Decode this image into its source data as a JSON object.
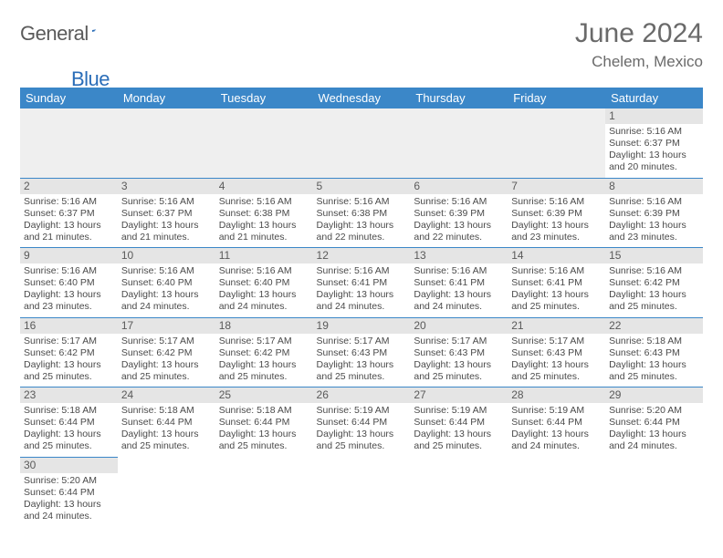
{
  "logo": {
    "dark": "General",
    "blue": "Blue"
  },
  "title": "June 2024",
  "location": "Chelem, Mexico",
  "header_color": "#3b87c8",
  "daynum_bg": "#e5e5e5",
  "divider_color": "#3b87c8",
  "weekdays": [
    "Sunday",
    "Monday",
    "Tuesday",
    "Wednesday",
    "Thursday",
    "Friday",
    "Saturday"
  ],
  "weeks": [
    [
      null,
      null,
      null,
      null,
      null,
      null,
      {
        "n": "1",
        "sr": "Sunrise: 5:16 AM",
        "ss": "Sunset: 6:37 PM",
        "d1": "Daylight: 13 hours",
        "d2": "and 20 minutes."
      }
    ],
    [
      {
        "n": "2",
        "sr": "Sunrise: 5:16 AM",
        "ss": "Sunset: 6:37 PM",
        "d1": "Daylight: 13 hours",
        "d2": "and 21 minutes."
      },
      {
        "n": "3",
        "sr": "Sunrise: 5:16 AM",
        "ss": "Sunset: 6:37 PM",
        "d1": "Daylight: 13 hours",
        "d2": "and 21 minutes."
      },
      {
        "n": "4",
        "sr": "Sunrise: 5:16 AM",
        "ss": "Sunset: 6:38 PM",
        "d1": "Daylight: 13 hours",
        "d2": "and 21 minutes."
      },
      {
        "n": "5",
        "sr": "Sunrise: 5:16 AM",
        "ss": "Sunset: 6:38 PM",
        "d1": "Daylight: 13 hours",
        "d2": "and 22 minutes."
      },
      {
        "n": "6",
        "sr": "Sunrise: 5:16 AM",
        "ss": "Sunset: 6:39 PM",
        "d1": "Daylight: 13 hours",
        "d2": "and 22 minutes."
      },
      {
        "n": "7",
        "sr": "Sunrise: 5:16 AM",
        "ss": "Sunset: 6:39 PM",
        "d1": "Daylight: 13 hours",
        "d2": "and 23 minutes."
      },
      {
        "n": "8",
        "sr": "Sunrise: 5:16 AM",
        "ss": "Sunset: 6:39 PM",
        "d1": "Daylight: 13 hours",
        "d2": "and 23 minutes."
      }
    ],
    [
      {
        "n": "9",
        "sr": "Sunrise: 5:16 AM",
        "ss": "Sunset: 6:40 PM",
        "d1": "Daylight: 13 hours",
        "d2": "and 23 minutes."
      },
      {
        "n": "10",
        "sr": "Sunrise: 5:16 AM",
        "ss": "Sunset: 6:40 PM",
        "d1": "Daylight: 13 hours",
        "d2": "and 24 minutes."
      },
      {
        "n": "11",
        "sr": "Sunrise: 5:16 AM",
        "ss": "Sunset: 6:40 PM",
        "d1": "Daylight: 13 hours",
        "d2": "and 24 minutes."
      },
      {
        "n": "12",
        "sr": "Sunrise: 5:16 AM",
        "ss": "Sunset: 6:41 PM",
        "d1": "Daylight: 13 hours",
        "d2": "and 24 minutes."
      },
      {
        "n": "13",
        "sr": "Sunrise: 5:16 AM",
        "ss": "Sunset: 6:41 PM",
        "d1": "Daylight: 13 hours",
        "d2": "and 24 minutes."
      },
      {
        "n": "14",
        "sr": "Sunrise: 5:16 AM",
        "ss": "Sunset: 6:41 PM",
        "d1": "Daylight: 13 hours",
        "d2": "and 25 minutes."
      },
      {
        "n": "15",
        "sr": "Sunrise: 5:16 AM",
        "ss": "Sunset: 6:42 PM",
        "d1": "Daylight: 13 hours",
        "d2": "and 25 minutes."
      }
    ],
    [
      {
        "n": "16",
        "sr": "Sunrise: 5:17 AM",
        "ss": "Sunset: 6:42 PM",
        "d1": "Daylight: 13 hours",
        "d2": "and 25 minutes."
      },
      {
        "n": "17",
        "sr": "Sunrise: 5:17 AM",
        "ss": "Sunset: 6:42 PM",
        "d1": "Daylight: 13 hours",
        "d2": "and 25 minutes."
      },
      {
        "n": "18",
        "sr": "Sunrise: 5:17 AM",
        "ss": "Sunset: 6:42 PM",
        "d1": "Daylight: 13 hours",
        "d2": "and 25 minutes."
      },
      {
        "n": "19",
        "sr": "Sunrise: 5:17 AM",
        "ss": "Sunset: 6:43 PM",
        "d1": "Daylight: 13 hours",
        "d2": "and 25 minutes."
      },
      {
        "n": "20",
        "sr": "Sunrise: 5:17 AM",
        "ss": "Sunset: 6:43 PM",
        "d1": "Daylight: 13 hours",
        "d2": "and 25 minutes."
      },
      {
        "n": "21",
        "sr": "Sunrise: 5:17 AM",
        "ss": "Sunset: 6:43 PM",
        "d1": "Daylight: 13 hours",
        "d2": "and 25 minutes."
      },
      {
        "n": "22",
        "sr": "Sunrise: 5:18 AM",
        "ss": "Sunset: 6:43 PM",
        "d1": "Daylight: 13 hours",
        "d2": "and 25 minutes."
      }
    ],
    [
      {
        "n": "23",
        "sr": "Sunrise: 5:18 AM",
        "ss": "Sunset: 6:44 PM",
        "d1": "Daylight: 13 hours",
        "d2": "and 25 minutes."
      },
      {
        "n": "24",
        "sr": "Sunrise: 5:18 AM",
        "ss": "Sunset: 6:44 PM",
        "d1": "Daylight: 13 hours",
        "d2": "and 25 minutes."
      },
      {
        "n": "25",
        "sr": "Sunrise: 5:18 AM",
        "ss": "Sunset: 6:44 PM",
        "d1": "Daylight: 13 hours",
        "d2": "and 25 minutes."
      },
      {
        "n": "26",
        "sr": "Sunrise: 5:19 AM",
        "ss": "Sunset: 6:44 PM",
        "d1": "Daylight: 13 hours",
        "d2": "and 25 minutes."
      },
      {
        "n": "27",
        "sr": "Sunrise: 5:19 AM",
        "ss": "Sunset: 6:44 PM",
        "d1": "Daylight: 13 hours",
        "d2": "and 25 minutes."
      },
      {
        "n": "28",
        "sr": "Sunrise: 5:19 AM",
        "ss": "Sunset: 6:44 PM",
        "d1": "Daylight: 13 hours",
        "d2": "and 24 minutes."
      },
      {
        "n": "29",
        "sr": "Sunrise: 5:20 AM",
        "ss": "Sunset: 6:44 PM",
        "d1": "Daylight: 13 hours",
        "d2": "and 24 minutes."
      }
    ],
    [
      {
        "n": "30",
        "sr": "Sunrise: 5:20 AM",
        "ss": "Sunset: 6:44 PM",
        "d1": "Daylight: 13 hours",
        "d2": "and 24 minutes."
      },
      null,
      null,
      null,
      null,
      null,
      null
    ]
  ]
}
